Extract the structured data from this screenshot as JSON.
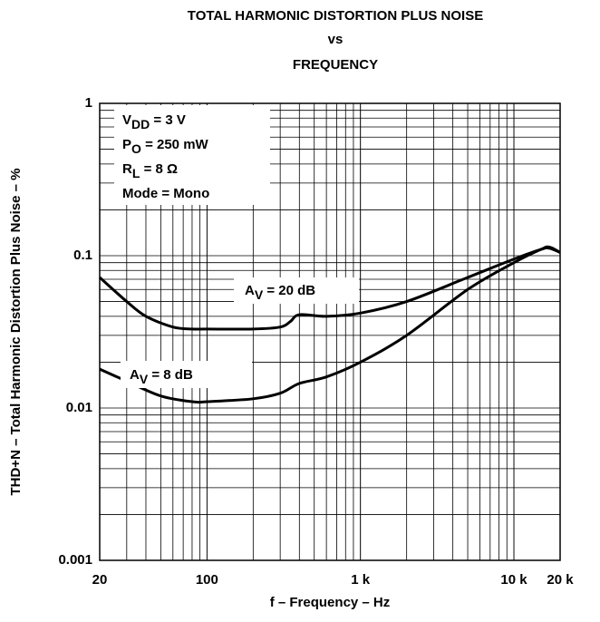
{
  "chart_data": {
    "type": "line",
    "title": [
      "TOTAL HARMONIC DISTORTION PLUS NOISE",
      "vs",
      "FREQUENCY"
    ],
    "xlabel": "f – Frequency – Hz",
    "ylabel": "THD+N – Total Harmonic Distortion Plus Noise – %",
    "xscale": "log",
    "yscale": "log",
    "xlim": [
      20,
      20000
    ],
    "ylim": [
      0.001,
      1
    ],
    "xticks": [
      20,
      100,
      {
        "value": 1000,
        "label": "1 k"
      },
      {
        "value": 10000,
        "label": "10 k"
      },
      {
        "value": 20000,
        "label": "20 k"
      }
    ],
    "yticks": [
      0.001,
      0.01,
      0.1,
      1
    ],
    "grid": true,
    "minor_grid": true,
    "annotations": [
      [
        {
          "text": "V"
        },
        {
          "text": "DD",
          "sub": true
        },
        {
          "text": " = 3 V"
        }
      ],
      [
        {
          "text": "P"
        },
        {
          "text": "O",
          "sub": true
        },
        {
          "text": " = 250 mW"
        }
      ],
      [
        {
          "text": "R"
        },
        {
          "text": "L",
          "sub": true
        },
        {
          "text": " = 8 Ω"
        }
      ],
      [
        {
          "text": "Mode = Mono"
        }
      ]
    ],
    "series": [
      {
        "label": [
          {
            "text": "A"
          },
          {
            "text": "V",
            "sub": true
          },
          {
            "text": " = 20 dB"
          }
        ],
        "color": "#000000",
        "x": [
          20,
          30,
          40,
          60,
          80,
          100,
          200,
          300,
          350,
          400,
          600,
          1000,
          2000,
          5000,
          10000,
          15000,
          17000,
          20000
        ],
        "values": [
          0.072,
          0.05,
          0.04,
          0.034,
          0.033,
          0.033,
          0.033,
          0.034,
          0.037,
          0.041,
          0.04,
          0.042,
          0.05,
          0.072,
          0.095,
          0.11,
          0.112,
          0.105
        ]
      },
      {
        "label": [
          {
            "text": "A"
          },
          {
            "text": "V",
            "sub": true
          },
          {
            "text": " = 8 dB"
          }
        ],
        "color": "#000000",
        "x": [
          20,
          30,
          50,
          80,
          100,
          200,
          300,
          400,
          600,
          1000,
          2000,
          5000,
          10000,
          15000,
          17000,
          20000
        ],
        "values": [
          0.018,
          0.015,
          0.012,
          0.011,
          0.011,
          0.0115,
          0.0125,
          0.0145,
          0.016,
          0.02,
          0.03,
          0.06,
          0.09,
          0.11,
          0.114,
          0.105
        ]
      }
    ]
  }
}
